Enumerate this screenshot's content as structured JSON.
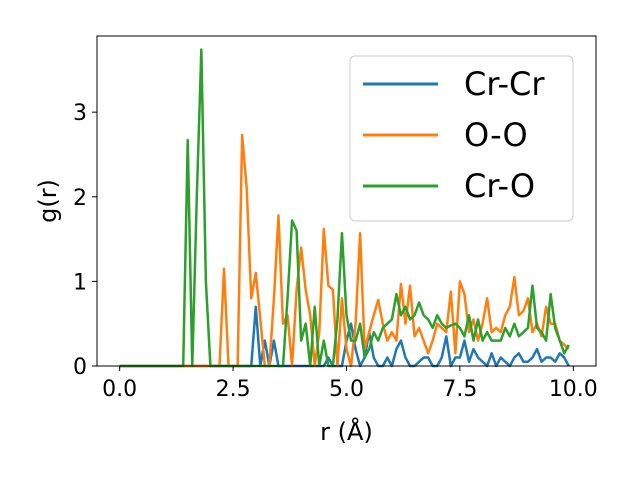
{
  "chart_data": {
    "type": "line",
    "title": "",
    "xlabel": "r (Å)",
    "ylabel": "g(r)",
    "xlim": [
      -0.5,
      10.5
    ],
    "ylim": [
      0,
      3.9
    ],
    "xticks": [
      0.0,
      2.5,
      5.0,
      7.5,
      10.0
    ],
    "xtick_labels": [
      "0.0",
      "2.5",
      "5.0",
      "7.5",
      "10.0"
    ],
    "yticks": [
      0,
      1,
      2,
      3
    ],
    "ytick_labels": [
      "0",
      "1",
      "2",
      "3"
    ],
    "grid": false,
    "legend_position": "top-right",
    "series": [
      {
        "name": "Cr-Cr",
        "color": "#1f77b4",
        "x": [
          0.0,
          2.9,
          3.0,
          3.1,
          3.2,
          3.3,
          3.4,
          3.5,
          3.6,
          3.7,
          4.0,
          4.4,
          4.5,
          4.6,
          4.7,
          4.9,
          5.0,
          5.1,
          5.2,
          5.3,
          5.4,
          5.5,
          5.6,
          5.7,
          5.8,
          5.9,
          6.0,
          6.1,
          6.2,
          6.3,
          6.4,
          6.5,
          6.6,
          6.7,
          6.8,
          6.9,
          7.0,
          7.1,
          7.2,
          7.3,
          7.4,
          7.5,
          7.6,
          7.7,
          7.8,
          7.9,
          8.0,
          8.1,
          8.2,
          8.3,
          8.4,
          8.5,
          8.6,
          8.7,
          8.8,
          8.9,
          9.0,
          9.1,
          9.2,
          9.3,
          9.4,
          9.5,
          9.6,
          9.7,
          9.8,
          9.9
        ],
        "values": [
          0,
          0,
          0.7,
          0,
          0.3,
          0,
          0.3,
          0,
          0,
          0,
          0,
          0,
          0,
          0.1,
          0,
          0,
          0.3,
          0.5,
          0.2,
          0,
          0.1,
          0.4,
          0.1,
          0,
          0,
          0.1,
          0,
          0.2,
          0.3,
          0.1,
          0,
          0,
          0.05,
          0.1,
          0.1,
          0,
          0,
          0.1,
          0.35,
          0,
          0.1,
          0.1,
          0.3,
          0.05,
          0.2,
          0.1,
          0.05,
          0,
          0.15,
          0,
          0.1,
          0.05,
          0,
          0.1,
          0.15,
          0.05,
          0.05,
          0.1,
          0.2,
          0.05,
          0.1,
          0.1,
          0.05,
          0.15,
          0.1,
          0
        ]
      },
      {
        "name": "O-O",
        "color": "#ff7f0e",
        "x": [
          0.0,
          2.2,
          2.3,
          2.4,
          2.5,
          2.6,
          2.7,
          2.8,
          2.9,
          3.0,
          3.2,
          3.3,
          3.4,
          3.5,
          3.6,
          3.7,
          3.8,
          3.9,
          4.0,
          4.1,
          4.2,
          4.3,
          4.4,
          4.5,
          4.6,
          4.7,
          4.8,
          4.9,
          5.0,
          5.1,
          5.2,
          5.3,
          5.4,
          5.5,
          5.6,
          5.7,
          5.8,
          5.9,
          6.0,
          6.1,
          6.2,
          6.3,
          6.4,
          6.5,
          6.6,
          6.7,
          6.8,
          6.9,
          7.0,
          7.1,
          7.2,
          7.3,
          7.4,
          7.5,
          7.6,
          7.7,
          7.8,
          7.9,
          8.0,
          8.1,
          8.2,
          8.3,
          8.4,
          8.5,
          8.6,
          8.7,
          8.8,
          8.9,
          9.0,
          9.1,
          9.2,
          9.3,
          9.4,
          9.5,
          9.6,
          9.7,
          9.8,
          9.9
        ],
        "values": [
          0,
          0,
          1.15,
          0,
          0,
          0,
          2.73,
          2.1,
          0.8,
          1.1,
          0,
          0,
          0.8,
          1.78,
          0.5,
          0.6,
          0,
          0.9,
          1.4,
          0.9,
          0.6,
          0,
          0.4,
          1.62,
          0.95,
          0.9,
          0,
          0.8,
          0.2,
          0,
          0.5,
          1.57,
          0.2,
          0.4,
          0.6,
          0.78,
          0.5,
          0.3,
          0.4,
          0.3,
          0.97,
          0.5,
          0.95,
          0.35,
          0.45,
          0.3,
          0.15,
          0.3,
          0.5,
          0.45,
          0.4,
          0.88,
          0.15,
          1.0,
          0.85,
          0.4,
          0.55,
          0.3,
          0.5,
          0.8,
          0.4,
          0.45,
          0.4,
          0.6,
          0.7,
          1.05,
          0.6,
          0.65,
          0.8,
          0.4,
          0.5,
          0.35,
          0.7,
          0.5,
          0.5,
          0.3,
          0.25,
          0.2
        ]
      },
      {
        "name": "Cr-O",
        "color": "#2ca02c",
        "x": [
          0.0,
          1.4,
          1.5,
          1.6,
          1.7,
          1.8,
          1.9,
          2.0,
          2.1,
          3.6,
          3.7,
          3.8,
          3.9,
          4.0,
          4.1,
          4.2,
          4.3,
          4.4,
          4.5,
          4.6,
          4.7,
          4.8,
          4.9,
          5.0,
          5.1,
          5.2,
          5.3,
          5.4,
          5.5,
          5.6,
          5.7,
          5.8,
          5.9,
          6.0,
          6.1,
          6.2,
          6.3,
          6.4,
          6.5,
          6.6,
          6.7,
          6.8,
          6.9,
          7.0,
          7.1,
          7.2,
          7.3,
          7.4,
          7.5,
          7.6,
          7.7,
          7.8,
          7.9,
          8.0,
          8.1,
          8.2,
          8.3,
          8.4,
          8.5,
          8.6,
          8.7,
          8.8,
          8.9,
          9.0,
          9.1,
          9.2,
          9.3,
          9.4,
          9.5,
          9.6,
          9.7,
          9.8,
          9.9
        ],
        "values": [
          0,
          0,
          2.67,
          0,
          2.0,
          3.74,
          1.0,
          0,
          0,
          0,
          0.8,
          1.72,
          1.6,
          0.3,
          0.5,
          0,
          0.7,
          0,
          0.3,
          0,
          0,
          0.55,
          1.57,
          0.6,
          0.3,
          0.3,
          0.5,
          0.1,
          0.2,
          0.4,
          0.3,
          0.45,
          0.5,
          0.55,
          0.85,
          0.6,
          0.7,
          0.55,
          0.6,
          0.75,
          0.6,
          0.55,
          0.45,
          0.6,
          0.5,
          0.45,
          0.48,
          0.5,
          0.45,
          0.35,
          0.6,
          0.3,
          0.55,
          0.3,
          0.4,
          0.3,
          0.3,
          0.3,
          0.45,
          0.35,
          0.5,
          0.35,
          0.4,
          0.45,
          0.95,
          0.45,
          0.4,
          0.3,
          0.85,
          0.45,
          0.3,
          0.15,
          0.25
        ]
      }
    ]
  }
}
